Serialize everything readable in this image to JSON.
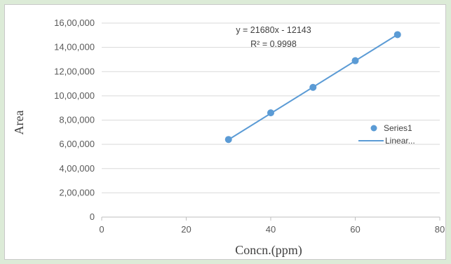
{
  "chart_data": {
    "type": "scatter",
    "title": "",
    "xlabel": "Concn.(ppm)",
    "ylabel": "Area",
    "xlim": [
      0,
      80
    ],
    "ylim": [
      0,
      1600000
    ],
    "x_ticks": [
      "0",
      "20",
      "40",
      "60",
      "80"
    ],
    "y_ticks": [
      "0",
      "2,00,000",
      "4,00,000",
      "6,00,000",
      "8,00,000",
      "10,00,000",
      "12,00,000",
      "14,00,000",
      "16,00,000"
    ],
    "grid": true,
    "legend_position": "right",
    "series": [
      {
        "name": "Series1",
        "x": [
          30,
          40,
          50,
          60,
          70
        ],
        "y": [
          640000,
          860000,
          1070000,
          1290000,
          1505000
        ],
        "color": "#5b9bd5"
      }
    ],
    "trendline": {
      "name": "Linear...",
      "type": "linear",
      "slope": 21680,
      "intercept": -12143,
      "x_range": [
        30,
        70
      ],
      "color": "#5b9bd5"
    },
    "annotations": {
      "equation": "y = 21680x - 12143",
      "r_squared": "R² = 0.9998"
    },
    "legend": [
      "Series1",
      "Linear..."
    ]
  }
}
